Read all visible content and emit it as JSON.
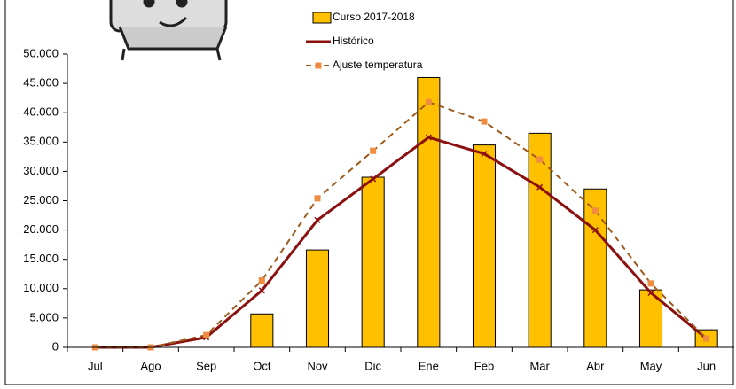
{
  "chart_data": {
    "type": "bar-line",
    "categories": [
      "Jul",
      "Ago",
      "Sep",
      "Oct",
      "Nov",
      "Dic",
      "Ene",
      "Feb",
      "Mar",
      "Abr",
      "May",
      "Jun"
    ],
    "series": [
      {
        "name": "Curso 2017-2018",
        "type": "bar",
        "color": "#ffc000",
        "values": [
          0,
          0,
          0,
          5700,
          16600,
          29000,
          46000,
          34500,
          36500,
          27000,
          9800,
          3000
        ]
      },
      {
        "name": "Histórico",
        "type": "line",
        "color": "#8b1010",
        "values": [
          0,
          0,
          1700,
          9700,
          21700,
          28700,
          35800,
          33000,
          27300,
          20000,
          9300,
          1500
        ]
      },
      {
        "name": "Ajuste temperatura",
        "type": "line",
        "dashed": true,
        "color": "#9c5b1c",
        "marker_color": "#f08c40",
        "values": [
          0,
          0,
          2100,
          11400,
          25400,
          33500,
          41800,
          38500,
          32000,
          23300,
          10900,
          1500
        ]
      }
    ],
    "ylim": [
      0,
      50000
    ],
    "yticks": [
      0,
      {
        "value": 5000,
        "label": "5.000"
      },
      {
        "value": 10000,
        "label": "10.000"
      },
      {
        "value": 15000,
        "label": "15.000"
      },
      {
        "value": 20000,
        "label": "20.000"
      },
      {
        "value": 25000,
        "label": "25.000"
      },
      {
        "value": 30000,
        "label": "30.000"
      },
      {
        "value": 35000,
        "label": "35.000"
      },
      {
        "value": 40000,
        "label": "40.000"
      },
      {
        "value": 45000,
        "label": "45.000"
      },
      {
        "value": 50000,
        "label": "50.000"
      }
    ]
  }
}
